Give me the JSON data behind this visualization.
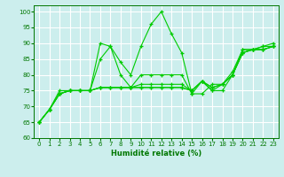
{
  "xlabel": "Humidité relative (%)",
  "bg_color": "#cceeed",
  "grid_color": "#aadddd",
  "line_color": "#00cc00",
  "xlim": [
    -0.5,
    23.5
  ],
  "ylim": [
    60,
    102
  ],
  "yticks": [
    60,
    65,
    70,
    75,
    80,
    85,
    90,
    95,
    100
  ],
  "xticks": [
    0,
    1,
    2,
    3,
    4,
    5,
    6,
    7,
    8,
    9,
    10,
    11,
    12,
    13,
    14,
    15,
    16,
    17,
    18,
    19,
    20,
    21,
    22,
    23
  ],
  "series": [
    [
      65,
      69,
      75,
      75,
      75,
      75,
      90,
      89,
      84,
      80,
      89,
      96,
      100,
      93,
      87,
      74,
      78,
      75,
      75,
      80,
      88,
      88,
      89,
      89
    ],
    [
      65,
      69,
      74,
      75,
      75,
      75,
      85,
      89,
      80,
      76,
      80,
      80,
      80,
      80,
      80,
      74,
      74,
      77,
      77,
      81,
      88,
      88,
      89,
      90
    ],
    [
      65,
      69,
      74,
      75,
      75,
      75,
      76,
      76,
      76,
      76,
      77,
      77,
      77,
      77,
      77,
      75,
      78,
      75,
      77,
      80,
      87,
      88,
      88,
      89
    ],
    [
      65,
      69,
      74,
      75,
      75,
      75,
      76,
      76,
      76,
      76,
      76,
      76,
      76,
      76,
      76,
      75,
      78,
      76,
      77,
      80,
      87,
      88,
      88,
      89
    ],
    [
      65,
      69,
      74,
      75,
      75,
      75,
      76,
      76,
      76,
      76,
      76,
      76,
      76,
      76,
      76,
      75,
      78,
      76,
      77,
      80,
      87,
      88,
      88,
      89
    ]
  ]
}
